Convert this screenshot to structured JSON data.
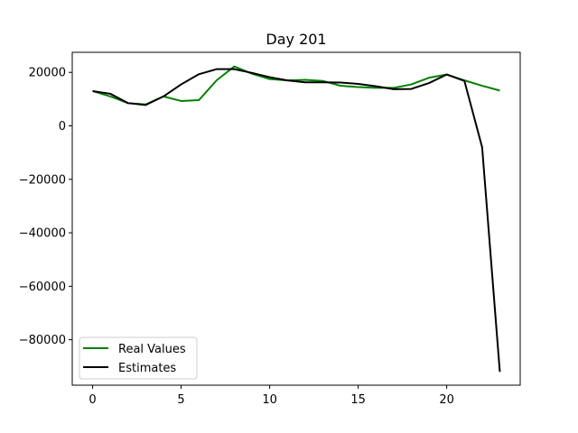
{
  "chart_data": {
    "type": "line",
    "title": "Day 201",
    "xlabel": "",
    "ylabel": "",
    "xlim": [
      -1.15,
      24.15
    ],
    "ylim": [
      -97000,
      27500
    ],
    "xticks": [
      0,
      5,
      10,
      15,
      20
    ],
    "yticks": [
      -80000,
      -60000,
      -40000,
      -20000,
      0,
      20000
    ],
    "x": [
      0,
      1,
      2,
      3,
      4,
      5,
      6,
      7,
      8,
      9,
      10,
      11,
      12,
      13,
      14,
      15,
      16,
      17,
      18,
      19,
      20,
      21,
      22,
      23
    ],
    "series": [
      {
        "name": "Real Values",
        "color": "#008000",
        "values": [
          13000,
          11000,
          8500,
          8000,
          11000,
          9300,
          9600,
          17000,
          22200,
          19500,
          17500,
          17000,
          17200,
          16800,
          15000,
          14500,
          14200,
          14200,
          15500,
          18000,
          19200,
          17000,
          15000,
          13200
        ]
      },
      {
        "name": "Estimates",
        "color": "#000000",
        "values": [
          13000,
          12000,
          8500,
          7800,
          11000,
          15500,
          19300,
          21200,
          21200,
          19800,
          18200,
          17000,
          16300,
          16300,
          16200,
          15700,
          14800,
          13700,
          13800,
          16000,
          19200,
          16800,
          -8000,
          -92000
        ]
      }
    ],
    "grid": false,
    "legend_position": "lower-left"
  }
}
